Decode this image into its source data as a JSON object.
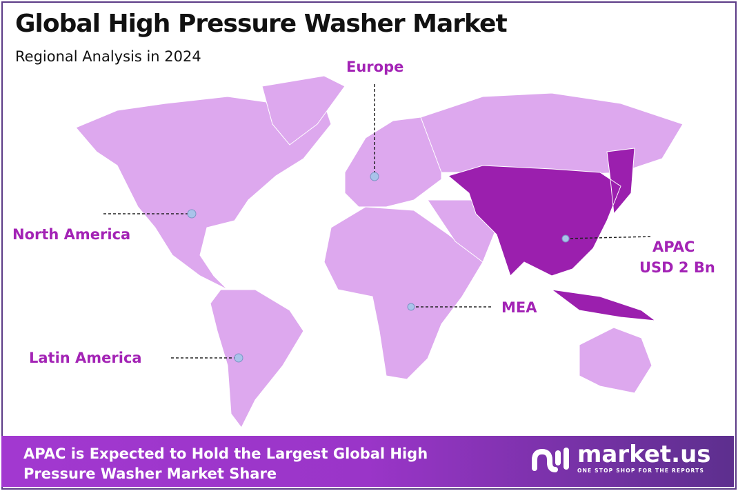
{
  "header": {
    "title": "Global High Pressure Washer Market",
    "subtitle": "Regional Analysis in 2024"
  },
  "colors": {
    "map_base": "#dda8ee",
    "highlight": "#9b1fae",
    "label": "#a323b5",
    "marker": "#a9c3ea",
    "border": "#5b3a86"
  },
  "regions": [
    {
      "name": "North America",
      "highlighted": false
    },
    {
      "name": "Europe",
      "highlighted": false
    },
    {
      "name": "APAC",
      "value": "USD 2 Bn",
      "highlighted": true
    },
    {
      "name": "MEA",
      "highlighted": false
    },
    {
      "name": "Latin America",
      "highlighted": false
    }
  ],
  "footer": {
    "headline": "APAC is Expected to Hold the Largest Global High Pressure Washer Market Share"
  },
  "logo": {
    "name": "market.us",
    "tagline": "ONE STOP SHOP FOR THE REPORTS"
  }
}
